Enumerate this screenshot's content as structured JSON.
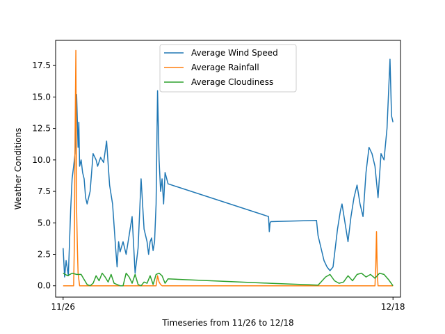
{
  "chart_data": {
    "type": "line",
    "title": "",
    "xlabel": "Timeseries from 11/26 to 12/18",
    "ylabel": "Weather Conditions",
    "xlim": [
      -0.5,
      22.5
    ],
    "ylim": [
      -0.9,
      19.5
    ],
    "xticks": [
      {
        "value": 0,
        "label": "11/26"
      },
      {
        "value": 22,
        "label": "12/18"
      }
    ],
    "yticks": [
      0.0,
      2.5,
      5.0,
      7.5,
      10.0,
      12.5,
      15.0,
      17.5
    ],
    "ytick_labels": [
      "0.0",
      "2.5",
      "5.0",
      "7.5",
      "10.0",
      "12.5",
      "15.0",
      "17.5"
    ],
    "grid": false,
    "legend_position": "upper-center",
    "series": [
      {
        "name": "Average Wind Speed",
        "color": "#1f77b4",
        "x": [
          0,
          0.1,
          0.2,
          0.35,
          0.5,
          0.6,
          0.7,
          0.8,
          0.9,
          1.0,
          1.05,
          1.1,
          1.2,
          1.3,
          1.4,
          1.5,
          1.6,
          1.8,
          2.0,
          2.2,
          2.3,
          2.5,
          2.7,
          2.9,
          3.1,
          3.3,
          3.5,
          3.6,
          3.7,
          3.8,
          4.0,
          4.2,
          4.4,
          4.6,
          4.8,
          5.0,
          5.2,
          5.4,
          5.5,
          5.6,
          5.7,
          5.8,
          5.9,
          6.0,
          6.1,
          6.2,
          6.3,
          6.4,
          6.5,
          6.6,
          6.7,
          6.8,
          7.0,
          13.7,
          13.75,
          13.8,
          13.85,
          16.9,
          17.0,
          17.2,
          17.4,
          17.6,
          17.8,
          18.0,
          18.1,
          18.3,
          18.5,
          18.6,
          18.8,
          19.0,
          19.2,
          19.4,
          19.6,
          19.8,
          20.0,
          20.2,
          20.4,
          20.6,
          20.8,
          21.0,
          21.2,
          21.4,
          21.6,
          21.8,
          21.9,
          22.0
        ],
        "y": [
          3.0,
          0.7,
          2.0,
          0.8,
          6.0,
          8.5,
          9.5,
          10.5,
          15.2,
          11.0,
          13.0,
          9.5,
          10.0,
          9.0,
          8.5,
          7.0,
          6.5,
          7.5,
          10.5,
          10.0,
          9.5,
          10.2,
          9.8,
          11.5,
          8.0,
          6.5,
          3.0,
          1.5,
          3.5,
          2.7,
          3.5,
          2.5,
          4.0,
          5.5,
          1.0,
          3.0,
          8.5,
          4.5,
          4.0,
          3.5,
          2.5,
          3.5,
          3.8,
          2.8,
          3.5,
          6.5,
          15.5,
          10.0,
          7.5,
          8.5,
          6.5,
          9.0,
          8.1,
          5.5,
          4.3,
          5.0,
          5.1,
          5.2,
          4.0,
          3.0,
          2.0,
          1.5,
          1.2,
          1.5,
          2.5,
          4.5,
          6.0,
          6.5,
          5.0,
          3.5,
          5.5,
          7.0,
          8.0,
          6.5,
          5.5,
          9.0,
          11.0,
          10.5,
          9.5,
          7.0,
          10.5,
          10.0,
          12.5,
          18.0,
          13.5,
          13.0
        ]
      },
      {
        "name": "Average Rainfall",
        "color": "#ff7f0e",
        "x": [
          0,
          0.7,
          0.75,
          0.8,
          0.85,
          0.9,
          0.95,
          1.0,
          1.05,
          1.1,
          1.2,
          6.2,
          6.3,
          6.4,
          6.5,
          6.6,
          20.8,
          20.85,
          20.9,
          20.95,
          21.0,
          22.0
        ],
        "y": [
          0.0,
          0.0,
          3.5,
          12.0,
          18.7,
          6.0,
          3.0,
          1.0,
          0.5,
          0.0,
          0.0,
          0.0,
          0.8,
          0.3,
          0.1,
          0.0,
          0.0,
          1.5,
          4.3,
          1.0,
          0.0,
          0.0
        ]
      },
      {
        "name": "Average Cloudiness",
        "color": "#2ca02c",
        "x": [
          0,
          0.3,
          0.6,
          0.9,
          1.2,
          1.4,
          1.6,
          1.8,
          2.0,
          2.2,
          2.4,
          2.6,
          2.8,
          3.0,
          3.2,
          3.4,
          3.6,
          3.8,
          4.0,
          4.2,
          4.4,
          4.6,
          4.8,
          5.0,
          5.2,
          5.4,
          5.6,
          5.8,
          6.0,
          6.2,
          6.4,
          6.6,
          6.8,
          7.0,
          13.8,
          17.0,
          17.2,
          17.5,
          17.8,
          18.1,
          18.4,
          18.7,
          19.0,
          19.3,
          19.6,
          19.9,
          20.2,
          20.5,
          20.8,
          21.1,
          21.4,
          21.7,
          22.0
        ],
        "y": [
          1.0,
          0.8,
          1.0,
          0.9,
          0.9,
          0.5,
          0.1,
          0.0,
          0.2,
          0.8,
          0.4,
          1.0,
          0.7,
          0.3,
          0.9,
          0.2,
          0.1,
          0.0,
          0.0,
          1.0,
          0.7,
          0.2,
          0.9,
          0.1,
          0.0,
          0.3,
          0.2,
          0.8,
          0.1,
          0.9,
          1.0,
          0.8,
          0.2,
          0.55,
          0.2,
          0.05,
          0.3,
          0.7,
          0.9,
          0.4,
          0.2,
          0.3,
          0.8,
          0.4,
          0.9,
          1.0,
          0.7,
          0.9,
          0.6,
          1.0,
          0.9,
          0.5,
          0.0
        ]
      }
    ]
  }
}
